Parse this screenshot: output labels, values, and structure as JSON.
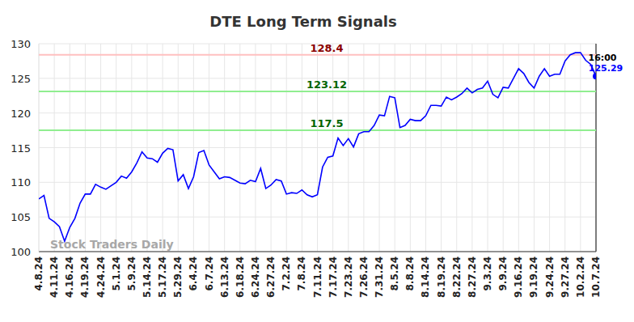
{
  "chart_data": {
    "type": "line",
    "title": "DTE Long Term Signals",
    "categories": [
      "4.8.24",
      null,
      null,
      "4.11.24",
      null,
      null,
      "4.16.24",
      null,
      null,
      "4.19.24",
      null,
      null,
      "4.24.24",
      null,
      null,
      "5.1.24",
      null,
      null,
      "5.9.24",
      null,
      null,
      "5.14.24",
      null,
      null,
      "5.17.24",
      null,
      null,
      "5.29.24",
      null,
      null,
      "6.4.24",
      null,
      null,
      "6.7.24",
      null,
      null,
      "6.13.24",
      null,
      null,
      "6.18.24",
      null,
      null,
      "6.24.24",
      null,
      null,
      "6.27.24",
      null,
      null,
      "7.2.24",
      null,
      null,
      "7.8.24",
      null,
      null,
      "7.11.24",
      null,
      null,
      "7.17.24",
      null,
      null,
      "7.23.24",
      null,
      null,
      "7.26.24",
      null,
      null,
      "7.31.24",
      null,
      null,
      "8.5.24",
      null,
      null,
      "8.8.24",
      null,
      null,
      "8.14.24",
      null,
      null,
      "8.19.24",
      null,
      null,
      "8.22.24",
      null,
      null,
      "8.27.24",
      null,
      null,
      "9.3.24",
      null,
      null,
      "9.9.24",
      null,
      null,
      "9.16.24",
      null,
      null,
      "9.19.24",
      null,
      null,
      "9.24.24",
      null,
      null,
      "9.27.24",
      null,
      null,
      "10.2.24",
      null,
      null,
      "10.7.24"
    ],
    "values": [
      107.6,
      108.1,
      104.8,
      104.3,
      103.6,
      101.5,
      103.5,
      104.8,
      107,
      108.3,
      108.3,
      109.7,
      109.3,
      109,
      109.5,
      110,
      110.9,
      110.6,
      111.5,
      112.8,
      114.4,
      113.5,
      113.4,
      112.9,
      114.2,
      114.9,
      114.7,
      110.2,
      111.1,
      109.1,
      110.8,
      114.3,
      114.6,
      112.5,
      111.5,
      110.5,
      110.8,
      110.7,
      110.3,
      109.9,
      109.8,
      110.3,
      110.1,
      112,
      109.1,
      109.6,
      110.4,
      110.2,
      108.3,
      108.5,
      108.4,
      108.9,
      108.2,
      107.9,
      108.2,
      112.2,
      113.6,
      113.8,
      116.4,
      115.3,
      116.3,
      115.1,
      117,
      117.3,
      117.3,
      118.2,
      119.7,
      119.6,
      122.4,
      122.2,
      117.9,
      118.2,
      119.1,
      118.9,
      118.9,
      119.6,
      121.1,
      121.1,
      121,
      122.3,
      121.9,
      122.3,
      122.8,
      123.6,
      122.9,
      123.4,
      123.6,
      124.6,
      122.7,
      122.2,
      123.7,
      123.6,
      125,
      126.4,
      125.7,
      124.4,
      123.6,
      125.3,
      126.4,
      125.3,
      125.6,
      125.6,
      127.5,
      128.4,
      128.7,
      128.7,
      127.6,
      127,
      125.29
    ],
    "color": "#0000ff",
    "ylim": [
      100,
      130
    ],
    "yticks": [
      100,
      105,
      110,
      115,
      120,
      125,
      130
    ],
    "grid": true,
    "reference_lines": [
      {
        "value": 128.4,
        "color": "#ffc0c0",
        "label_color": "#8b0000"
      },
      {
        "value": 123.12,
        "color": "#90ee90",
        "label_color": "#006400"
      },
      {
        "value": 117.5,
        "color": "#90ee90",
        "label_color": "#006400"
      }
    ],
    "last_time": "16:00",
    "watermark": "Stock Traders Daily"
  }
}
